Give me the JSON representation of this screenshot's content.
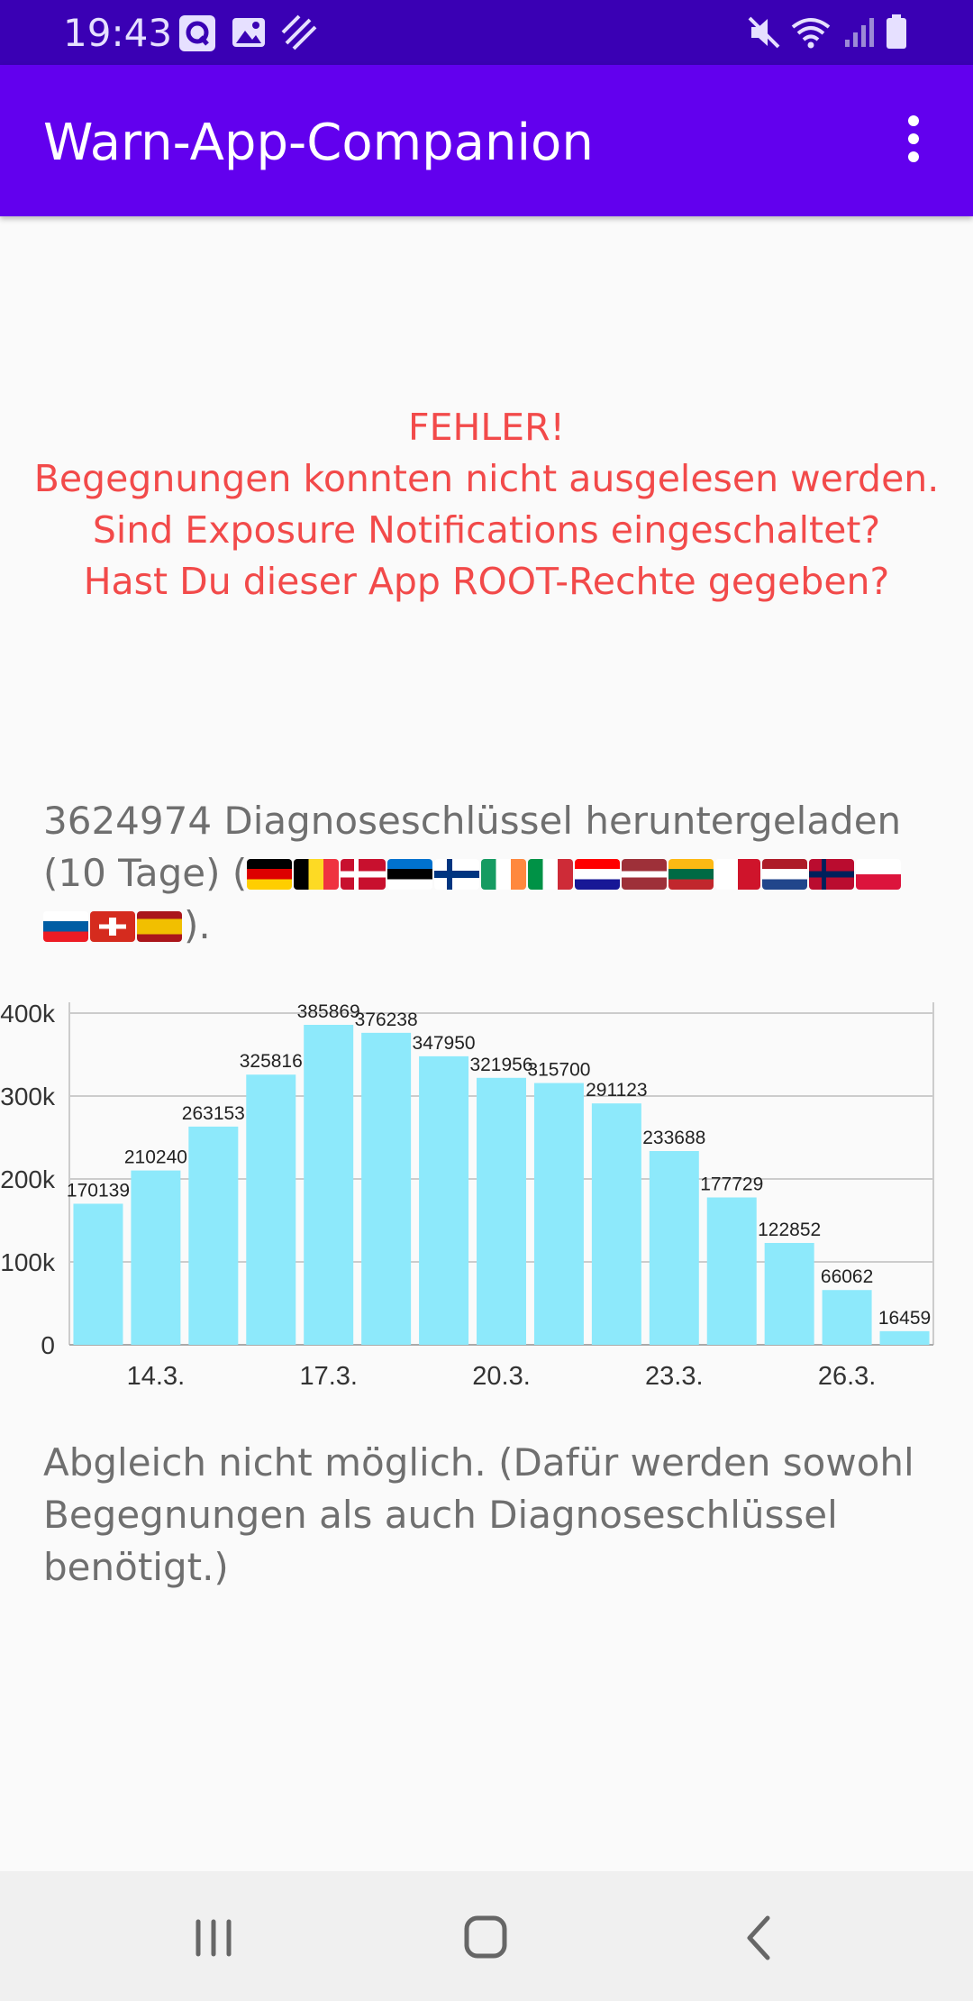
{
  "status_bar": {
    "time": "19:43"
  },
  "app_bar": {
    "title": "Warn-App-Companion"
  },
  "error_message": {
    "lines": [
      "FEHLER!",
      "Begegnungen konnten nicht ausgelesen werden.",
      "Sind Exposure Notifications eingeschaltet?",
      "Hast Du dieser App ROOT-Rechte gegeben?"
    ],
    "color": "#f24a4a"
  },
  "keys_summary": {
    "text": "3624974 Diagnoseschlüssel heruntergeladen (10 Tage) (",
    "suffix": ").",
    "flags": [
      "DE",
      "BE",
      "DK",
      "EE",
      "FI",
      "IE",
      "IT",
      "HR",
      "LV",
      "LT",
      "MT",
      "NL",
      "NO",
      "PL",
      "SI",
      "CH",
      "ES"
    ]
  },
  "chart_data": {
    "type": "bar",
    "categories": [
      "13.3.",
      "14.3.",
      "15.3.",
      "16.3.",
      "17.3.",
      "18.3.",
      "19.3.",
      "20.3.",
      "21.3.",
      "22.3.",
      "23.3.",
      "24.3.",
      "25.3.",
      "26.3.",
      "27.3."
    ],
    "x_tick_labels": [
      "14.3.",
      "17.3.",
      "20.3.",
      "23.3.",
      "26.3."
    ],
    "values": [
      170139,
      210240,
      263153,
      325816,
      385869,
      376238,
      347950,
      321956,
      315700,
      291123,
      233688,
      177729,
      122852,
      66062,
      16459
    ],
    "y_tick_labels": [
      "0",
      "100k",
      "200k",
      "300k",
      "400k"
    ],
    "ylim": [
      0,
      400000
    ],
    "grid": true,
    "bar_color": "#8de9fb"
  },
  "comparison_note": {
    "text": "Abgleich nicht möglich. (Dafür werden sowohl Begegnungen als auch Diagnoseschlüssel benötigt.)"
  },
  "icons": [
    "q-app-icon",
    "image-icon",
    "stripes-icon",
    "mute-icon",
    "wifi-icon",
    "signal-icon",
    "battery-icon",
    "overflow-menu-icon",
    "recent-apps-icon",
    "home-icon",
    "back-icon"
  ],
  "colors": {
    "status_bar": "#3a00b4",
    "app_bar": "#6200ee",
    "text_gray": "#6f6f6f"
  }
}
